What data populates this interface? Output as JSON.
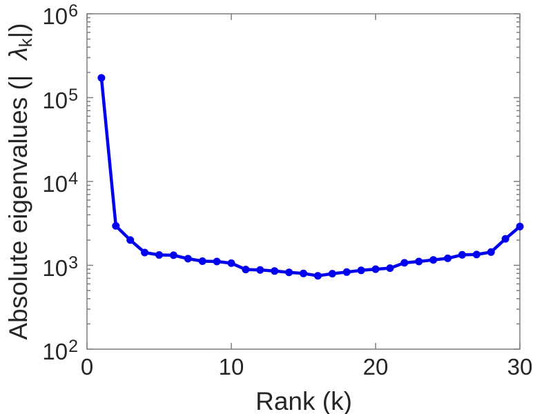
{
  "figure": {
    "background": "#ffffff",
    "line_color": "#0000ee",
    "axis_color": "#7d7d7d",
    "text_color": "#262626"
  },
  "chart_data": {
    "type": "line",
    "title": "",
    "xlabel": "Rank (k)",
    "ylabel": {
      "prefix": "Absolute eigenvalues (|",
      "lambda": "λ",
      "subscript": "k",
      "suffix": "|)"
    },
    "x_range": [
      0,
      30
    ],
    "x_ticks": [
      "0",
      "10",
      "20",
      "30"
    ],
    "x_tick_values": [
      0,
      10,
      20,
      30
    ],
    "y_scale": "log",
    "y_range": [
      100,
      1000000
    ],
    "y_tick_base": "10",
    "y_tick_exponents": [
      "2",
      "3",
      "4",
      "5",
      "6"
    ],
    "y_minor_ticks": true,
    "grid": false,
    "legend_position": "none",
    "marker": "filled-circle",
    "series": [
      {
        "name": "absolute-eigenvalues",
        "x": [
          1,
          2,
          3,
          4,
          5,
          6,
          7,
          8,
          9,
          10,
          11,
          12,
          13,
          14,
          15,
          16,
          17,
          18,
          19,
          20,
          21,
          22,
          23,
          24,
          25,
          26,
          27,
          28,
          29,
          30
        ],
        "y": [
          172000,
          2950,
          2000,
          1420,
          1330,
          1320,
          1200,
          1120,
          1110,
          1060,
          890,
          880,
          855,
          825,
          800,
          750,
          795,
          830,
          870,
          900,
          925,
          1070,
          1110,
          1160,
          1210,
          1335,
          1345,
          1440,
          2070,
          2900
        ]
      }
    ]
  }
}
